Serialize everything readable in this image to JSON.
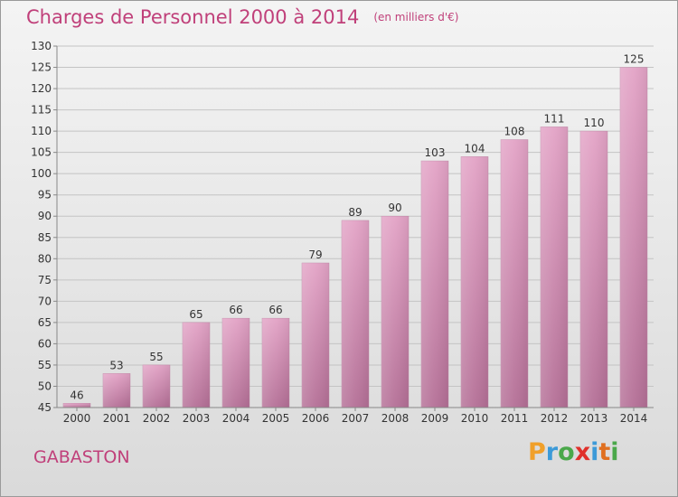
{
  "title": "Charges de Personnel 2000 à 2014",
  "subtitle": "(en milliers d'€)",
  "location": "GABASTON",
  "logo": {
    "letters": [
      "P",
      "r",
      "o",
      "x",
      "i",
      "t",
      "i"
    ],
    "colors": [
      "#f0a02a",
      "#3c9ad8",
      "#4aa84a",
      "#e0302a",
      "#3c9ad8",
      "#e07020",
      "#4aa84a"
    ]
  },
  "chart_data": {
    "type": "bar",
    "title": "Charges de Personnel 2000 à 2014",
    "subtitle": "(en milliers d'€)",
    "categories": [
      "2000",
      "2001",
      "2002",
      "2003",
      "2004",
      "2005",
      "2006",
      "2007",
      "2008",
      "2009",
      "2010",
      "2011",
      "2012",
      "2013",
      "2014"
    ],
    "values": [
      46,
      53,
      55,
      65,
      66,
      66,
      79,
      89,
      90,
      103,
      104,
      108,
      111,
      110,
      125
    ],
    "ylim": [
      45,
      130
    ],
    "yticks": [
      45,
      50,
      55,
      60,
      65,
      70,
      75,
      80,
      85,
      90,
      95,
      100,
      105,
      110,
      115,
      120,
      125,
      130
    ],
    "grid": true,
    "bar_color": "#d98cb6"
  }
}
